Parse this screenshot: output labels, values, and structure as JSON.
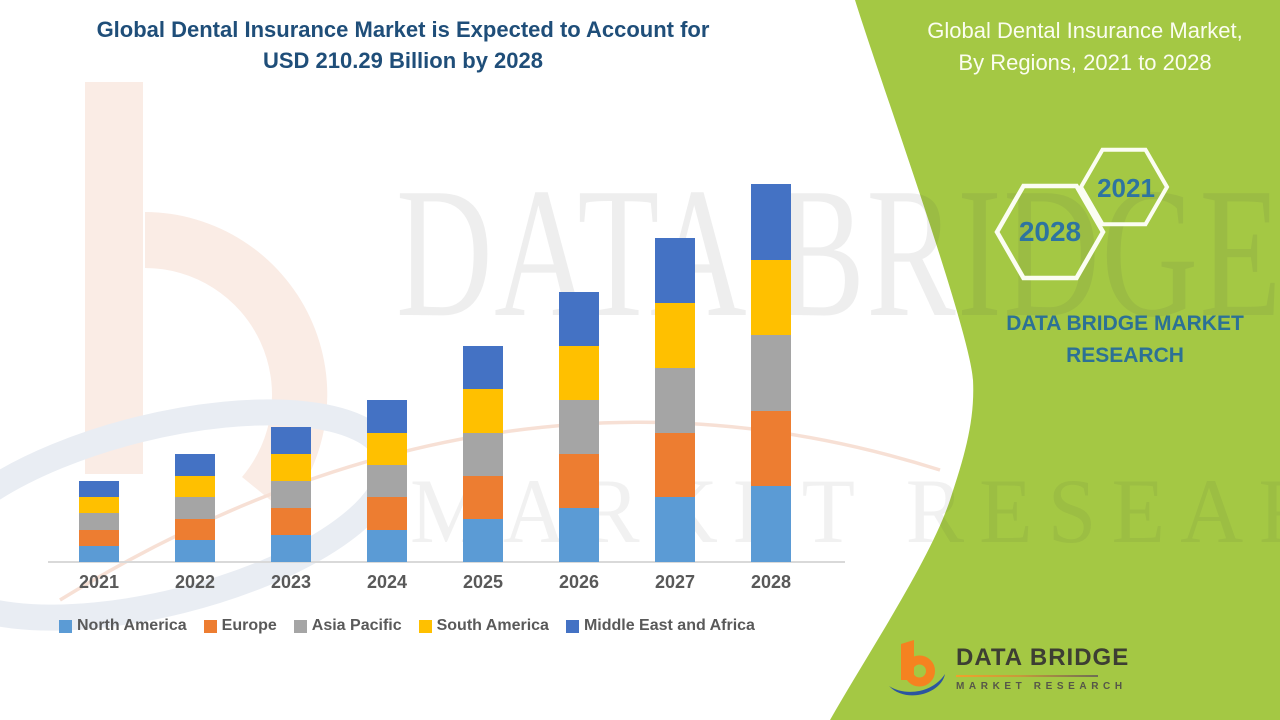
{
  "header": {
    "title_line1": "Global Dental Insurance Market is Expected to Account for",
    "title_line2": "USD 210.29 Billion by 2028",
    "title_color": "#1F4E79"
  },
  "side_panel": {
    "background_color": "#A4C844",
    "heading_line1": "Global Dental Insurance Market,",
    "heading_line2": "By Regions, 2021 to 2028",
    "heading_color": "#FBFDF0",
    "hexagon_small_label": "2021",
    "hexagon_large_label": "2028",
    "hexagon_label_color": "#2E74A0",
    "brand_line1": "DATA BRIDGE MARKET",
    "brand_line2": "RESEARCH",
    "brand_color": "#2C7195"
  },
  "watermark": {
    "line1": "DATA BRIDGE",
    "line2": "MARKET RESEARCH"
  },
  "logo": {
    "name": "DATA BRIDGE",
    "sub": "MARKET  RESEARCH",
    "orange": "#F58220",
    "blue": "#2B55A0"
  },
  "chart_data": {
    "type": "bar",
    "stacked": true,
    "title": "Global Dental Insurance Market, By Regions, 2021 to 2028",
    "unit": "USD Billion",
    "categories": [
      "2021",
      "2022",
      "2023",
      "2024",
      "2025",
      "2026",
      "2027",
      "2028"
    ],
    "series": [
      {
        "name": "North America",
        "color": "#5B9BD5",
        "values": [
          9,
          12,
          15,
          18,
          24,
          30,
          36,
          42.06
        ]
      },
      {
        "name": "Europe",
        "color": "#ED7D31",
        "values": [
          9,
          12,
          15,
          18,
          24,
          30,
          36,
          42.06
        ]
      },
      {
        "name": "Asia Pacific",
        "color": "#A5A5A5",
        "values": [
          9,
          12,
          15,
          18,
          24,
          30,
          36,
          42.06
        ]
      },
      {
        "name": "South America",
        "color": "#FFC000",
        "values": [
          9,
          12,
          15,
          18,
          24,
          30,
          36,
          42.06
        ]
      },
      {
        "name": "Middle East and Africa",
        "color": "#4472C4",
        "values": [
          9,
          12,
          15,
          18,
          24,
          30,
          36,
          42.05
        ]
      }
    ],
    "totals_usd_billion": [
      45,
      60,
      75,
      90,
      120,
      150,
      180,
      210.29
    ],
    "legend_position": "bottom",
    "grid": false,
    "y_axis_visible": false,
    "x_labels_color": "#595959",
    "axis_line_color": "#D9D9D9"
  }
}
